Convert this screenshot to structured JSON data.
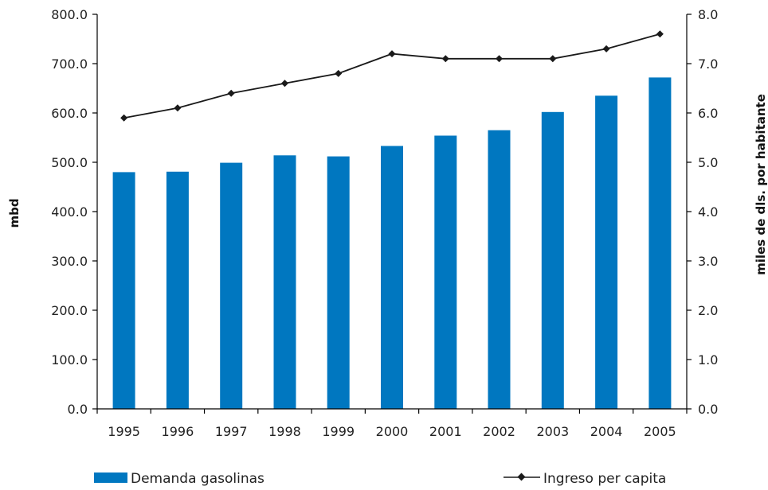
{
  "chart_data": {
    "type": "bar",
    "categories": [
      "1995",
      "1996",
      "1997",
      "1998",
      "1999",
      "2000",
      "2001",
      "2002",
      "2003",
      "2004",
      "2005"
    ],
    "series": [
      {
        "name": "Demanda gasolinas",
        "type": "bar",
        "axis": "left",
        "values": [
          480,
          481,
          499,
          514,
          512,
          533,
          554,
          565,
          602,
          635,
          672
        ]
      },
      {
        "name": "Ingreso per capita",
        "type": "line",
        "axis": "right",
        "values": [
          5.9,
          6.1,
          6.4,
          6.6,
          6.8,
          7.2,
          7.1,
          7.1,
          7.1,
          7.3,
          7.6
        ]
      }
    ],
    "ylabel": "mbd",
    "y2label": "miles de dls. por habitante",
    "ylim": [
      0,
      800
    ],
    "y2lim": [
      0,
      8
    ],
    "yticks": [
      "0.0",
      "100.0",
      "200.0",
      "300.0",
      "400.0",
      "500.0",
      "600.0",
      "700.0",
      "800.0"
    ],
    "y2ticks": [
      "0.0",
      "1.0",
      "2.0",
      "3.0",
      "4.0",
      "5.0",
      "6.0",
      "7.0",
      "8.0"
    ],
    "grid": false,
    "legend_position": "bottom",
    "colors": {
      "bar": "#0077c0",
      "line": "#1a1a1a",
      "axis": "#000000"
    }
  }
}
